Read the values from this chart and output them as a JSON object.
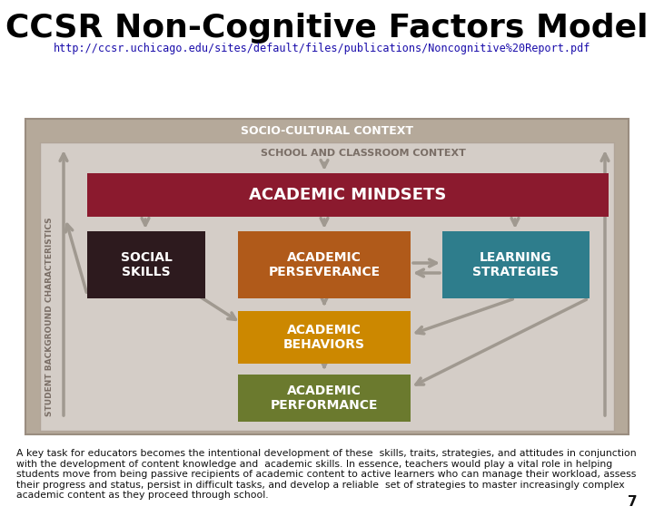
{
  "title": "CCSR Non-Cognitive Factors Model",
  "url": "http://ccsr.uchicago.edu/sites/default/files/publications/Noncognitive%20Report.pdf",
  "body_text": "A key task for educators becomes the intentional development of these  skills, traits, strategies, and attitudes in conjunction  with the development of content knowledge and  academic skills. In essence, teachers would play a vital role in helping students move from being passive recipients of academic content to active learners who can manage their workload, assess their progress and status, persist in difficult tasks, and develop a reliable  set of strategies to master increasingly complex  academic content as they proceed through school.",
  "page_num": "7",
  "bg_color": "#ffffff",
  "outer_box_color": "#b5a99a",
  "inner_box_color": "#d4cdc7",
  "arrow_color": "#a09990",
  "boxes": {
    "academic_mindsets": {
      "label": "ACADEMIC MINDSETS",
      "color": "#8b1a2e",
      "text_color": "#ffffff"
    },
    "social_skills": {
      "label": "SOCIAL\nSKILLS",
      "color": "#2d1a1e",
      "text_color": "#ffffff"
    },
    "academic_perseverance": {
      "label": "ACADEMIC\nPERSEVERANCE",
      "color": "#b05a1a",
      "text_color": "#ffffff"
    },
    "learning_strategies": {
      "label": "LEARNING\nSTRATEGIES",
      "color": "#2e7d8c",
      "text_color": "#ffffff"
    },
    "academic_behaviors": {
      "label": "ACADEMIC\nBEHAVIORS",
      "color": "#cc8800",
      "text_color": "#ffffff"
    },
    "academic_performance": {
      "label": "ACADEMIC\nPERFORMANCE",
      "color": "#6b7a2e",
      "text_color": "#ffffff"
    }
  },
  "socio_cultural_label": "SOCIO-CULTURAL CONTEXT",
  "school_label": "SCHOOL AND CLASSROOM CONTEXT",
  "student_label": "STUDENT BACKGROUND CHARACTERISTICS"
}
